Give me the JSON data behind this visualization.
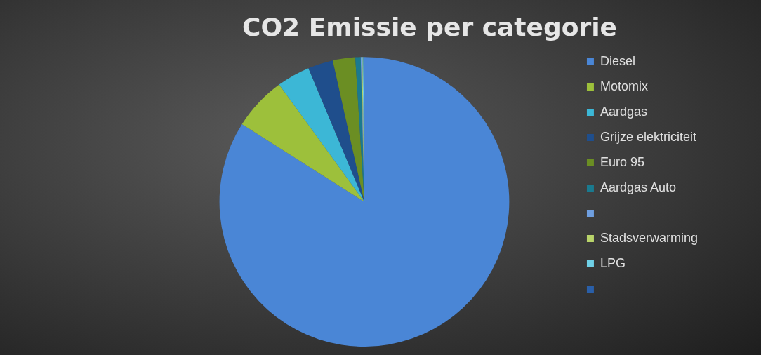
{
  "chart_data": {
    "type": "pie",
    "title": "CO2 Emissie per categorie",
    "categories": [
      "Diesel",
      "Motomix",
      "Aardgas",
      "Grijze elektriciteit",
      "Euro 95",
      "Aardgas Auto",
      null,
      "Stadsverwarming",
      "LPG",
      null
    ],
    "values": [
      84.0,
      6.0,
      3.7,
      2.8,
      2.5,
      0.6,
      0.1,
      0.1,
      0.1,
      0.1
    ],
    "colors": [
      "#4a86d6",
      "#9dc03b",
      "#3cb7d6",
      "#1f4e8c",
      "#6b8e23",
      "#1a7a8f",
      "#6f9fe0",
      "#b9d46a",
      "#6fd0e6",
      "#2a5fa8"
    ],
    "legend": "right"
  }
}
